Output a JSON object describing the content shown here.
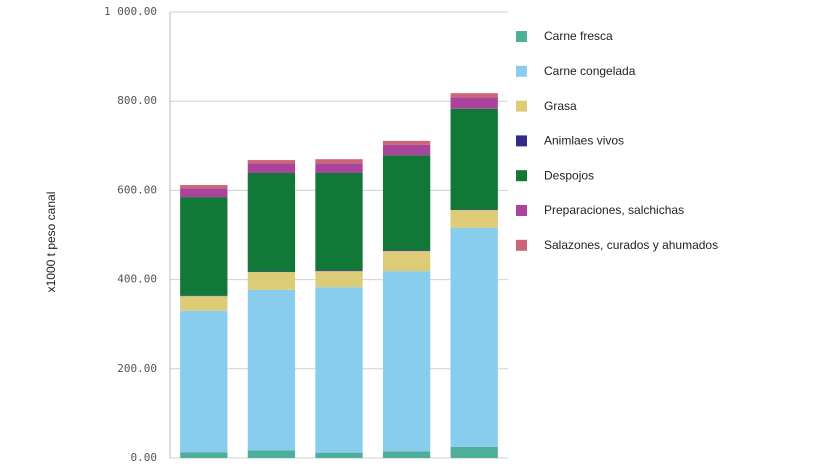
{
  "chart_data": {
    "type": "stacked-bar",
    "y_axis_label": "x1000 t peso canal",
    "categories": [
      null,
      null,
      null,
      null,
      null
    ],
    "series": [
      {
        "name": "Carne fresca",
        "color": "#4daf9a",
        "values": [
          13,
          17,
          12,
          15,
          25
        ]
      },
      {
        "name": "Carne congelada",
        "color": "#89cdee",
        "values": [
          317,
          360,
          371,
          404,
          491
        ]
      },
      {
        "name": "Grasa",
        "color": "#dccb77",
        "values": [
          33,
          40,
          36,
          45,
          40
        ]
      },
      {
        "name": "Animlaes vivos",
        "color": "#332a88",
        "values": [
          1,
          1,
          2,
          2,
          1
        ]
      },
      {
        "name": "Despojos",
        "color": "#127838",
        "values": [
          221,
          221,
          218,
          213,
          226
        ]
      },
      {
        "name": "Preparaciones, salchichas",
        "color": "#aa449a",
        "values": [
          20,
          22,
          22,
          23,
          26
        ]
      },
      {
        "name": "Salazones, curados y ahumados",
        "color": "#cc6677",
        "values": [
          7,
          7,
          9,
          9,
          9
        ]
      }
    ],
    "ylim": [
      0,
      1000
    ],
    "yticks": [
      {
        "value": 0,
        "label": "0.00"
      },
      {
        "value": 200,
        "label": "200.00"
      },
      {
        "value": 400,
        "label": "400.00"
      },
      {
        "value": 600,
        "label": "600.00"
      },
      {
        "value": 800,
        "label": "800.00"
      },
      {
        "value": 1000,
        "label": "1 000.00"
      }
    ],
    "grid": true,
    "legend": "right"
  }
}
